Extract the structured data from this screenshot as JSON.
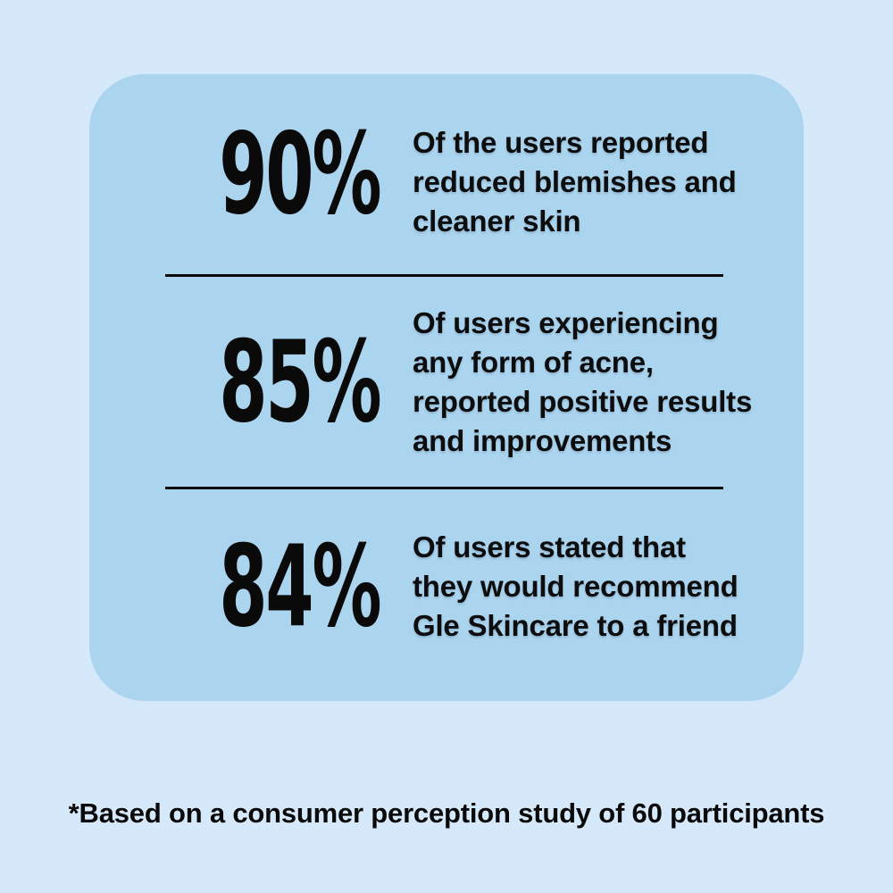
{
  "colors": {
    "page_background": "#D6E9FB",
    "card_background": "#ABD4EF",
    "text": "#0A0A0A",
    "divider": "#0B0B0B"
  },
  "stats": [
    {
      "value": "90%",
      "lines": {
        "0": "Of the users reported",
        "1": "reduced blemishes and",
        "2": "cleaner skin"
      }
    },
    {
      "value": "85%",
      "lines": {
        "0": "Of users experiencing",
        "1": "any form of acne,",
        "2": "reported positive results",
        "3": "and improvements"
      }
    },
    {
      "value": "84%",
      "lines": {
        "0": "Of users stated that",
        "1": "they would recommend",
        "2": "Gle Skincare to a friend"
      }
    }
  ],
  "footnote": "*Based on a consumer perception study of 60 participants"
}
